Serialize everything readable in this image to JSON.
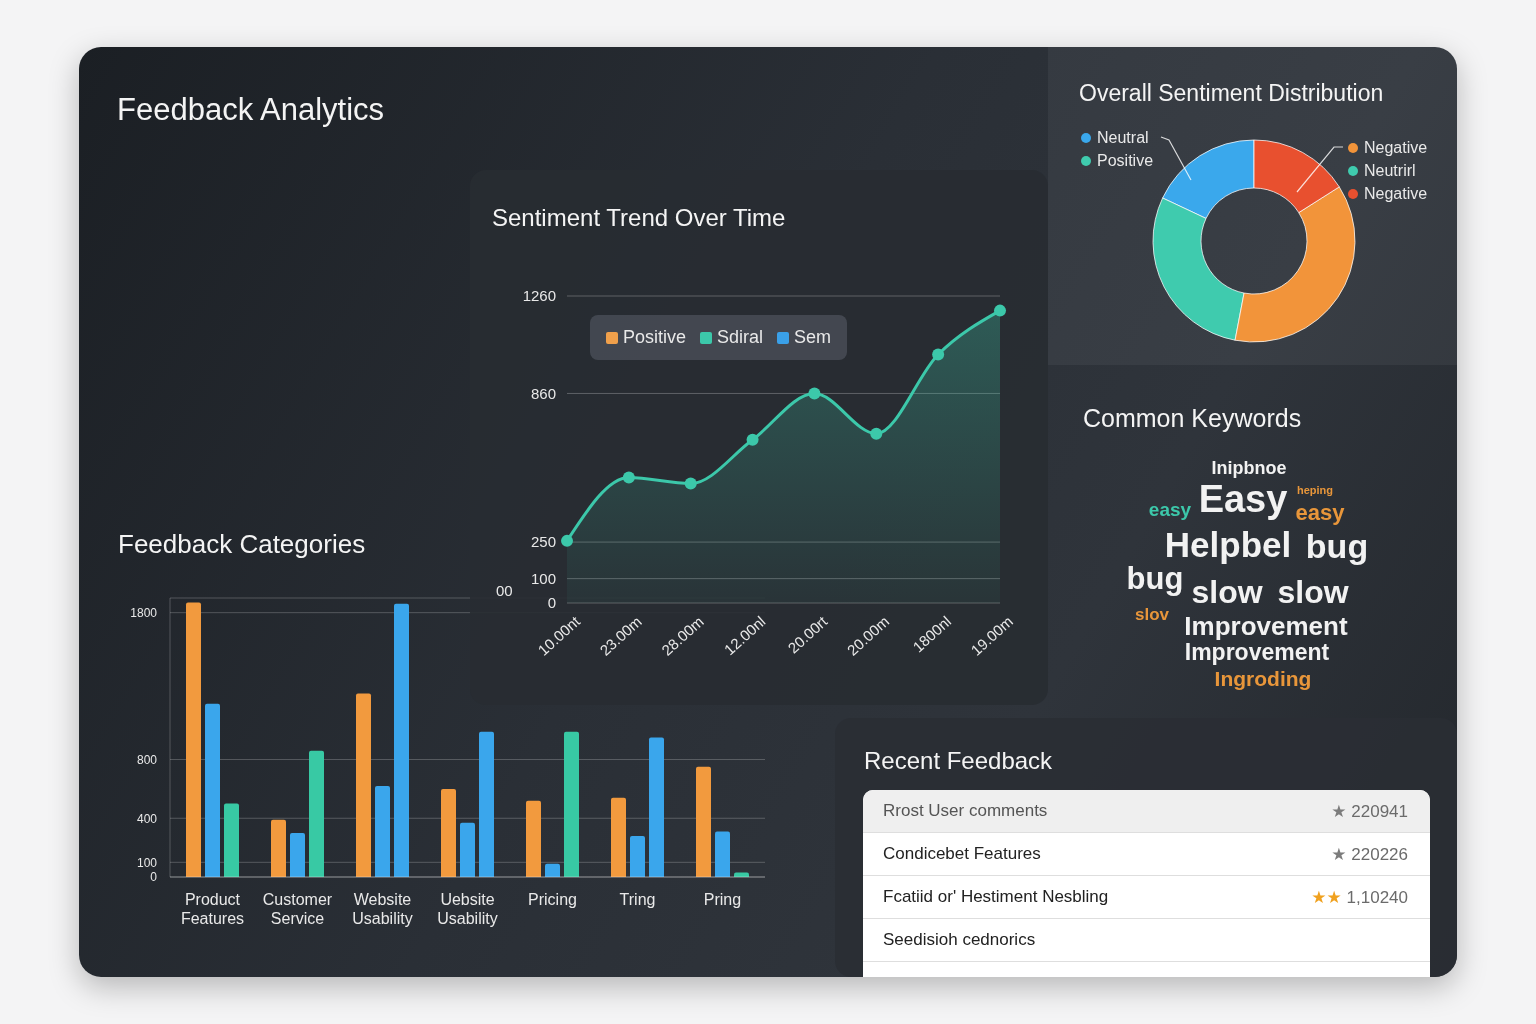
{
  "chart_data": [
    {
      "type": "other",
      "title": "Feedback Analytics"
    },
    {
      "type": "donut",
      "title": "Overall Sentiment Distribution",
      "categories": [
        "Neutral",
        "Positive",
        "Negative",
        "Neutrirl",
        "Negative"
      ],
      "values": [
        18,
        29,
        37,
        null,
        16
      ],
      "colors": [
        "#3aa8ec",
        "#3fcbae",
        "#f2943a",
        "#3fcbae",
        "#e8502f"
      ],
      "legend": "top"
    },
    {
      "type": "area",
      "title": "Sentiment Trend Over Time",
      "categories": [
        "10.00nt",
        "23.00m",
        "28.00m",
        "12.00nl",
        "20.00rt",
        "20.00m",
        "1800nl",
        "19.00m"
      ],
      "series": [
        {
          "name": "Positive",
          "color": "#f0a04b",
          "values": [
            null,
            null,
            null,
            null,
            null,
            null,
            null,
            null
          ]
        },
        {
          "name": "Sdiral",
          "color": "#3cc8aa",
          "values": [
            255,
            515,
            490,
            670,
            860,
            695,
            1020,
            1200
          ]
        },
        {
          "name": "Sem",
          "color": "#3aa0e8",
          "values": [
            null,
            null,
            null,
            null,
            null,
            null,
            null,
            null
          ]
        }
      ],
      "ylim": [
        0,
        1260
      ],
      "yticks": [
        0,
        100,
        250,
        860,
        1260
      ],
      "annotations": [
        "00"
      ],
      "grid": "y",
      "legend": "top left",
      "marker": "circle"
    },
    {
      "type": "other",
      "title": "Common Keywords",
      "annotations": [
        "Inipbnoe",
        "Easy",
        "easy",
        "easy",
        "heping",
        "Helpbel",
        "bug",
        "bug",
        "slow",
        "slow",
        "slov",
        "Improvement",
        "Improvement",
        "Ingroding"
      ],
      "colors": [
        "#f2f2f2",
        "#f2f2f2",
        "#3cc8aa",
        "#e8963a",
        "#e8963a",
        "#f2f2f2",
        "#f2f2f2",
        "#f2f2f2",
        "#f2f2f2",
        "#f2f2f2",
        "#e8963a",
        "#f2f2f2",
        "#f2f2f2",
        "#e8963a"
      ]
    },
    {
      "type": "bar",
      "title": "Feedback Categories",
      "categories": [
        "Product Features",
        "Customer Service",
        "Website Usability",
        "Uebsite Usability",
        "Pricing",
        "Tring",
        "Pring"
      ],
      "series": [
        {
          "color": "#f29a3e",
          "values": [
            1870,
            390,
            1250,
            600,
            520,
            540,
            750
          ]
        },
        {
          "color": "#3aa6ec",
          "values": [
            1180,
            300,
            620,
            370,
            90,
            280,
            310
          ]
        },
        {
          "colors": [
            "#38c9a4",
            "#38c9a4",
            "#3aa6ec",
            "#3aa6ec",
            "#38c9a4",
            "#3aa6ec",
            "#38c9a4"
          ],
          "values": [
            500,
            860,
            1860,
            990,
            990,
            950,
            30
          ]
        }
      ],
      "ylim": [
        0,
        1900
      ],
      "yticks": [
        0,
        100,
        400,
        800,
        1800
      ],
      "grid": "y"
    },
    {
      "type": "other",
      "title": "Recent Feedback",
      "categories": [
        "Rrost User comments",
        "Condicebet Features",
        "Fcatiid or' Hestiment Nesbling",
        "Seedisioh cednorics"
      ],
      "value_labels": [
        "★ 220941",
        "★ 220226",
        "★★ 1,10240",
        null
      ],
      "colors": [
        "#efefef",
        "#ffffff",
        "#ffffff",
        "#ffffff"
      ]
    }
  ]
}
